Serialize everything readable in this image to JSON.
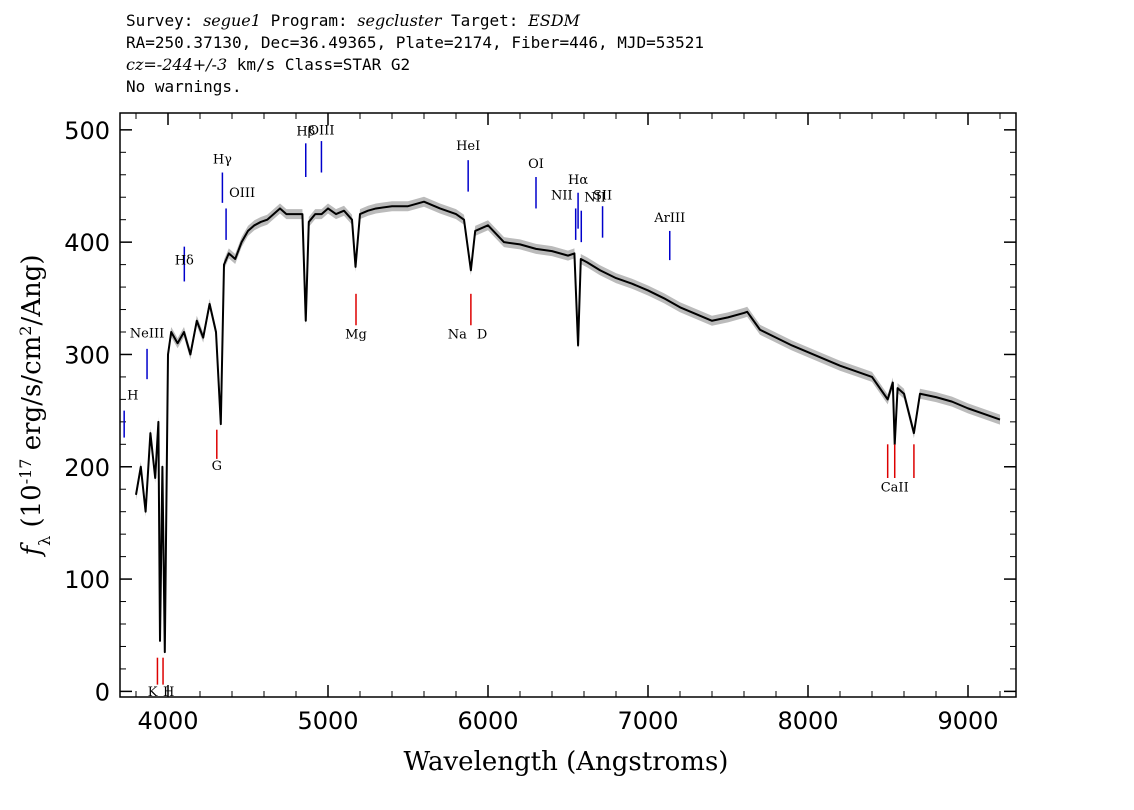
{
  "header": {
    "survey_key": "Survey:",
    "survey": "segue1",
    "program_key": "Program:",
    "program": "segcluster",
    "target_key": "Target:",
    "target": "ESDM",
    "coords": "RA=250.37130, Dec=36.49365, Plate=2174, Fiber=446, MJD=53521",
    "cz_val": "cz=-244+/-3",
    "cz_rest": " km/s Class=STAR G2",
    "warnings": "No warnings."
  },
  "chart_data": {
    "type": "line",
    "title": "",
    "xlabel": "Wavelength (Angstroms)",
    "ylabel": "f_λ (10^-17 erg/s/cm^2/Ang)",
    "xlim": [
      3700,
      9300
    ],
    "ylim": [
      -5,
      515
    ],
    "x_ticks": [
      4000,
      5000,
      6000,
      7000,
      8000,
      9000
    ],
    "y_ticks": [
      0,
      100,
      200,
      300,
      400,
      500
    ],
    "x_tick_labels": [
      "4000",
      "5000",
      "6000",
      "7000",
      "8000",
      "9000"
    ],
    "y_tick_labels": [
      "0",
      "100",
      "200",
      "300",
      "400",
      "500"
    ],
    "series": [
      {
        "x": [
          3800,
          3830,
          3860,
          3890,
          3920,
          3940,
          3950,
          3965,
          3980,
          4000,
          4020,
          4060,
          4100,
          4140,
          4180,
          4220,
          4260,
          4300,
          4330,
          4350,
          4380,
          4420,
          4460,
          4500,
          4540,
          4580,
          4620,
          4660,
          4700,
          4740,
          4800,
          4840,
          4861,
          4880,
          4920,
          4960,
          5000,
          5050,
          5100,
          5150,
          5172,
          5200,
          5250,
          5300,
          5400,
          5500,
          5600,
          5700,
          5800,
          5850,
          5893,
          5920,
          6000,
          6100,
          6200,
          6300,
          6400,
          6500,
          6540,
          6563,
          6580,
          6620,
          6700,
          6800,
          6900,
          7000,
          7100,
          7200,
          7300,
          7400,
          7500,
          7600,
          7620,
          7700,
          7800,
          7900,
          8000,
          8100,
          8200,
          8300,
          8400,
          8498,
          8530,
          8542,
          8560,
          8600,
          8662,
          8700,
          8800,
          8900,
          9000,
          9100,
          9200
        ],
        "y": [
          175,
          200,
          160,
          230,
          190,
          240,
          45,
          200,
          35,
          300,
          320,
          310,
          320,
          300,
          330,
          315,
          345,
          320,
          238,
          380,
          390,
          385,
          400,
          410,
          415,
          418,
          420,
          425,
          430,
          425,
          425,
          425,
          330,
          418,
          425,
          425,
          430,
          425,
          428,
          420,
          378,
          425,
          428,
          430,
          432,
          432,
          436,
          430,
          425,
          420,
          375,
          410,
          415,
          400,
          398,
          394,
          392,
          388,
          390,
          308,
          385,
          382,
          375,
          368,
          363,
          357,
          350,
          342,
          336,
          330,
          333,
          337,
          338,
          322,
          315,
          308,
          302,
          296,
          290,
          285,
          280,
          260,
          275,
          220,
          270,
          265,
          230,
          265,
          262,
          258,
          252,
          247,
          242
        ]
      }
    ],
    "annotations": {
      "emission": [
        {
          "label": "Hδ",
          "wave": 4102
        },
        {
          "label": "Hγ",
          "wave": 4340
        },
        {
          "label": "OIII",
          "wave": 4363
        },
        {
          "label": "Hβ",
          "wave": 4861
        },
        {
          "label": "OIII",
          "wave": 4959
        },
        {
          "label": "HeI",
          "wave": 5876
        },
        {
          "label": "OI",
          "wave": 6300
        },
        {
          "label": "NII",
          "wave": 6548
        },
        {
          "label": "Hα",
          "wave": 6563
        },
        {
          "label": "NII",
          "wave": 6583
        },
        {
          "label": "SII",
          "wave": 6716
        },
        {
          "label": "ArIII",
          "wave": 7136
        },
        {
          "label": "NeIII",
          "wave": 3869
        },
        {
          "label": "H",
          "wave": 3726
        }
      ],
      "absorption": [
        {
          "label": "K",
          "wave": 3934
        },
        {
          "label": "H",
          "wave": 3969
        },
        {
          "label": "G",
          "wave": 4305
        },
        {
          "label": "Mg",
          "wave": 5175
        },
        {
          "label": "Na",
          "wave": 5893
        },
        {
          "label": "D",
          "wave": 5893
        },
        {
          "label": "CaII",
          "wave": 8542
        }
      ]
    },
    "colors": {
      "spectrum": "#000000",
      "error_band": "#bbbbbb",
      "emission": "#0000cc",
      "absorption": "#dd0000"
    }
  }
}
